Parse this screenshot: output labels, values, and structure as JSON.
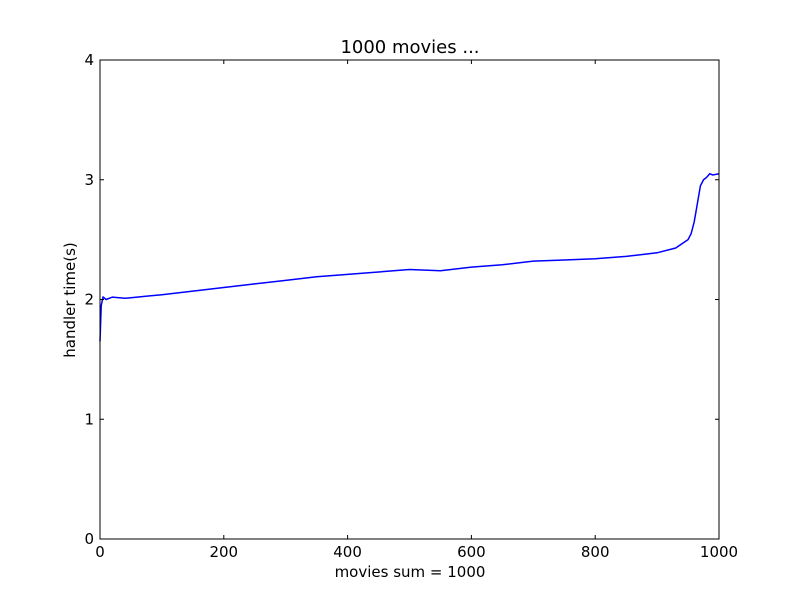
{
  "chart_data": {
    "type": "line",
    "title": "1000 movies ...",
    "xlabel": "movies sum = 1000",
    "ylabel": "handler time(s)",
    "xlim": [
      0,
      1000
    ],
    "ylim": [
      0,
      4
    ],
    "x_ticks": [
      0,
      200,
      400,
      600,
      800,
      1000
    ],
    "y_ticks": [
      0,
      1,
      2,
      3,
      4
    ],
    "grid": false,
    "legend": "none",
    "series": [
      {
        "color": "#0000ff",
        "x": [
          0,
          2,
          5,
          10,
          20,
          40,
          60,
          80,
          100,
          150,
          200,
          250,
          300,
          350,
          400,
          450,
          500,
          550,
          600,
          650,
          700,
          750,
          800,
          850,
          900,
          930,
          950,
          955,
          960,
          965,
          970,
          975,
          980,
          985,
          990,
          1000
        ],
        "values": [
          1.65,
          1.95,
          2.02,
          2.0,
          2.02,
          2.01,
          2.02,
          2.03,
          2.04,
          2.07,
          2.1,
          2.13,
          2.16,
          2.19,
          2.21,
          2.23,
          2.25,
          2.24,
          2.27,
          2.29,
          2.32,
          2.33,
          2.34,
          2.36,
          2.39,
          2.43,
          2.5,
          2.55,
          2.65,
          2.8,
          2.95,
          3.0,
          3.02,
          3.05,
          3.04,
          3.05
        ]
      }
    ]
  }
}
